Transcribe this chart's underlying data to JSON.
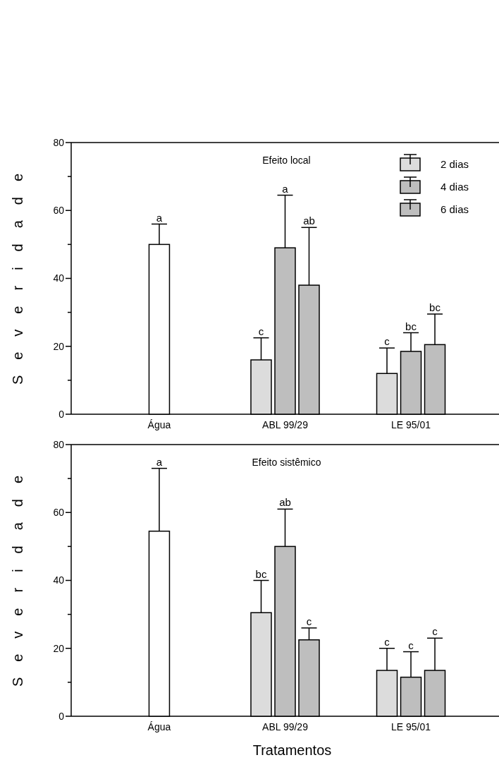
{
  "chart_data": [
    {
      "type": "bar",
      "title": "Efeito local",
      "ylabel": "Severidade",
      "categories": [
        "Água",
        "ABL 99/29",
        "LE 95/01"
      ],
      "series": [
        {
          "color": "#ffffff",
          "values": [
            50,
            null,
            null
          ],
          "errors": [
            [
              50,
              56
            ],
            null,
            null
          ]
        },
        {
          "name": "2 dias",
          "color": "#dcdcdc",
          "values": [
            null,
            16,
            12
          ],
          "errors": [
            null,
            [
              16,
              22.5
            ],
            [
              12,
              19.5
            ]
          ]
        },
        {
          "name": "4 dias",
          "color": "#bebebe",
          "values": [
            null,
            49,
            18.5
          ],
          "errors": [
            null,
            [
              49,
              64.5
            ],
            [
              18.5,
              24
            ]
          ]
        },
        {
          "name": "6 dias",
          "color": "#bebebe",
          "values": [
            null,
            38,
            20.5
          ],
          "errors": [
            null,
            [
              38,
              55
            ],
            [
              20.5,
              29.5
            ]
          ]
        }
      ],
      "annotations": [
        "a",
        "c",
        "a",
        "ab",
        "c",
        "bc",
        "bc"
      ],
      "ylim": [
        0,
        80
      ],
      "yticks": [
        0,
        {
          "value": 10,
          "label": null
        },
        20,
        {
          "value": 30,
          "label": null
        },
        40,
        {
          "value": 50,
          "label": null
        },
        60,
        {
          "value": 70,
          "label": null
        },
        80
      ],
      "grid": false,
      "legend": "top right"
    },
    {
      "type": "bar",
      "title": "Efeito sistêmico",
      "ylabel": "Severidade",
      "xlabel": "Tratamentos",
      "categories": [
        "Água",
        "ABL 99/29",
        "LE 95/01"
      ],
      "series": [
        {
          "color": "#ffffff",
          "values": [
            54.5,
            null,
            null
          ],
          "errors": [
            [
              54.5,
              73
            ],
            null,
            null
          ]
        },
        {
          "color": "#dcdcdc",
          "values": [
            null,
            30.5,
            13.5
          ],
          "errors": [
            null,
            [
              30.5,
              40
            ],
            [
              13.5,
              20
            ]
          ]
        },
        {
          "color": "#bebebe",
          "values": [
            null,
            50,
            11.5
          ],
          "errors": [
            null,
            [
              50,
              61
            ],
            [
              11.5,
              19
            ]
          ]
        },
        {
          "color": "#bebebe",
          "values": [
            null,
            22.5,
            13.5
          ],
          "errors": [
            null,
            [
              22.5,
              26
            ],
            [
              13.5,
              23
            ]
          ]
        }
      ],
      "annotations": [
        "a",
        "bc",
        "ab",
        "c",
        "c",
        "c",
        "c"
      ],
      "ylim": [
        0,
        80
      ],
      "yticks": [
        0,
        {
          "value": 10,
          "label": null
        },
        20,
        {
          "value": 30,
          "label": null
        },
        40,
        {
          "value": 50,
          "label": null
        },
        60,
        {
          "value": 70,
          "label": null
        },
        80
      ],
      "grid": false
    }
  ]
}
